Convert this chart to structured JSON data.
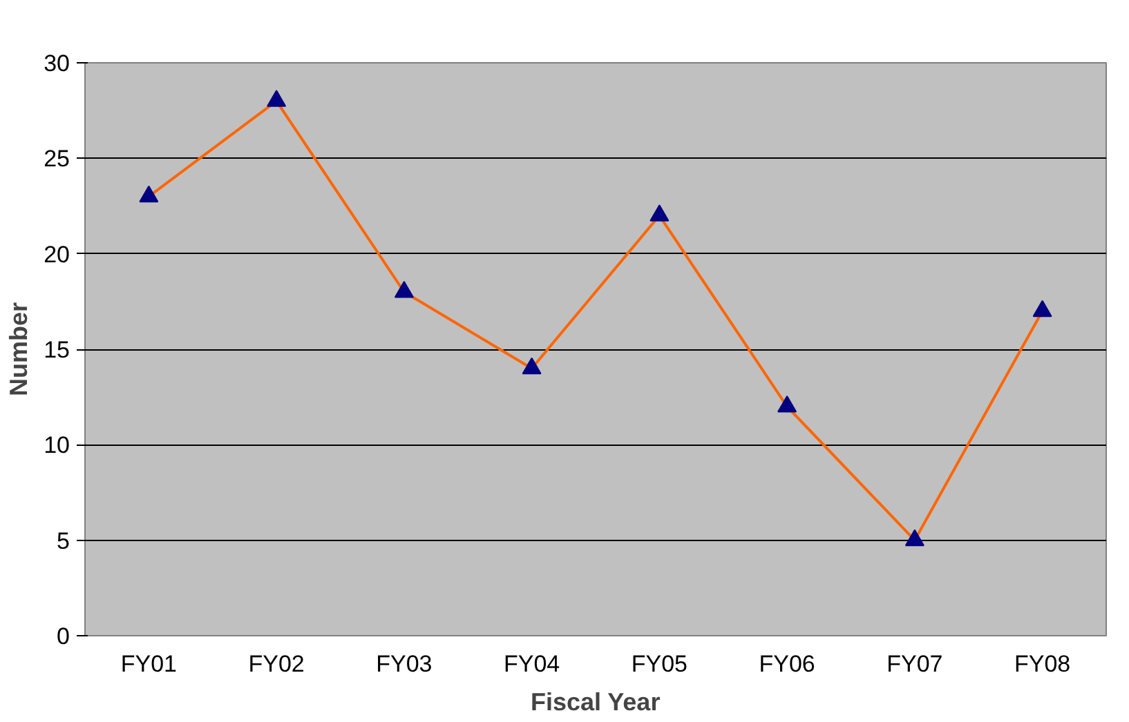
{
  "chart_data": {
    "type": "line",
    "xlabel": "Fiscal Year",
    "ylabel": "Number",
    "categories": [
      "FY01",
      "FY02",
      "FY03",
      "FY04",
      "FY05",
      "FY06",
      "FY07",
      "FY08"
    ],
    "series": [
      {
        "color": "#ff6600",
        "colors": [
          "#000080",
          "#000080",
          "#000080",
          "#000080",
          "#000080",
          "#000080",
          "#000080",
          "#000080"
        ],
        "values": [
          23,
          28,
          18,
          14,
          22,
          12,
          5,
          17
        ]
      }
    ],
    "ylim": [
      0,
      30
    ],
    "yticks": [
      0,
      5,
      10,
      15,
      20,
      25,
      30
    ],
    "grid": "y",
    "marker": "triangle",
    "line_style": "solid"
  }
}
